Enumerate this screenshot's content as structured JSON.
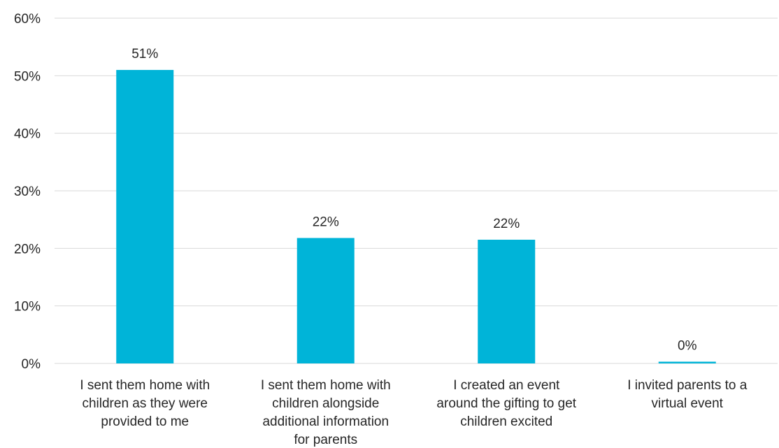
{
  "chart_data": {
    "type": "bar",
    "categories": [
      [
        "I sent them home with",
        "children as they were",
        "provided to me"
      ],
      [
        "I sent them home with",
        "children alongside",
        "additional information",
        "for parents"
      ],
      [
        "I created an event",
        "around the gifting to get",
        "children excited"
      ],
      [
        "I invited parents to a",
        "virtual event"
      ]
    ],
    "values": [
      51,
      21.8,
      21.5,
      0.3
    ],
    "data_labels": [
      "51%",
      "22%",
      "22%",
      "0%"
    ],
    "ylim": [
      0,
      60
    ],
    "yticks": [
      0,
      10,
      20,
      30,
      40,
      50,
      60
    ],
    "ytick_labels": [
      "0%",
      "10%",
      "20%",
      "30%",
      "40%",
      "50%",
      "60%"
    ],
    "title": "",
    "xlabel": "",
    "ylabel": "",
    "grid": true,
    "legend": "none",
    "colors": {
      "bar": "#00b4d8",
      "grid": "#d9d9d9",
      "text": "#262626"
    }
  }
}
